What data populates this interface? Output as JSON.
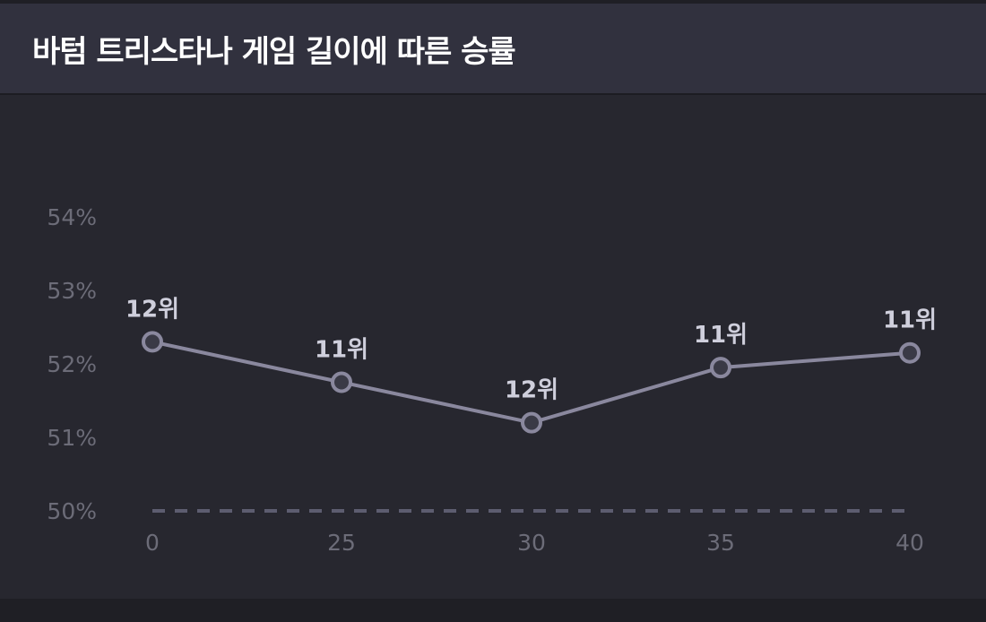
{
  "header": {
    "title": "바텀 트리스타나 게임 길이에 따른 승률"
  },
  "colors": {
    "background": "#27272f",
    "header_bg": "#31313e",
    "line": "#8a889e",
    "marker_fill": "#3a3a46",
    "label": "#cfcfdc",
    "tick": "#6c6c78",
    "baseline": "#5d5d70"
  },
  "chart_data": {
    "type": "line",
    "title": "바텀 트리스타나 게임 길이에 따른 승률",
    "xlabel": "",
    "ylabel": "",
    "categories": [
      "0",
      "25",
      "30",
      "35",
      "40"
    ],
    "series": [
      {
        "values": [
          52.3,
          51.75,
          51.2,
          51.95,
          52.15
        ],
        "labels": [
          "12위",
          "11위",
          "12위",
          "11위",
          "11위"
        ]
      }
    ],
    "ylim": [
      50,
      54
    ],
    "yticks": [
      "50%",
      "51%",
      "52%",
      "53%",
      "54%"
    ],
    "baseline_value": 50,
    "baseline_style": "dashed",
    "grid": false
  }
}
